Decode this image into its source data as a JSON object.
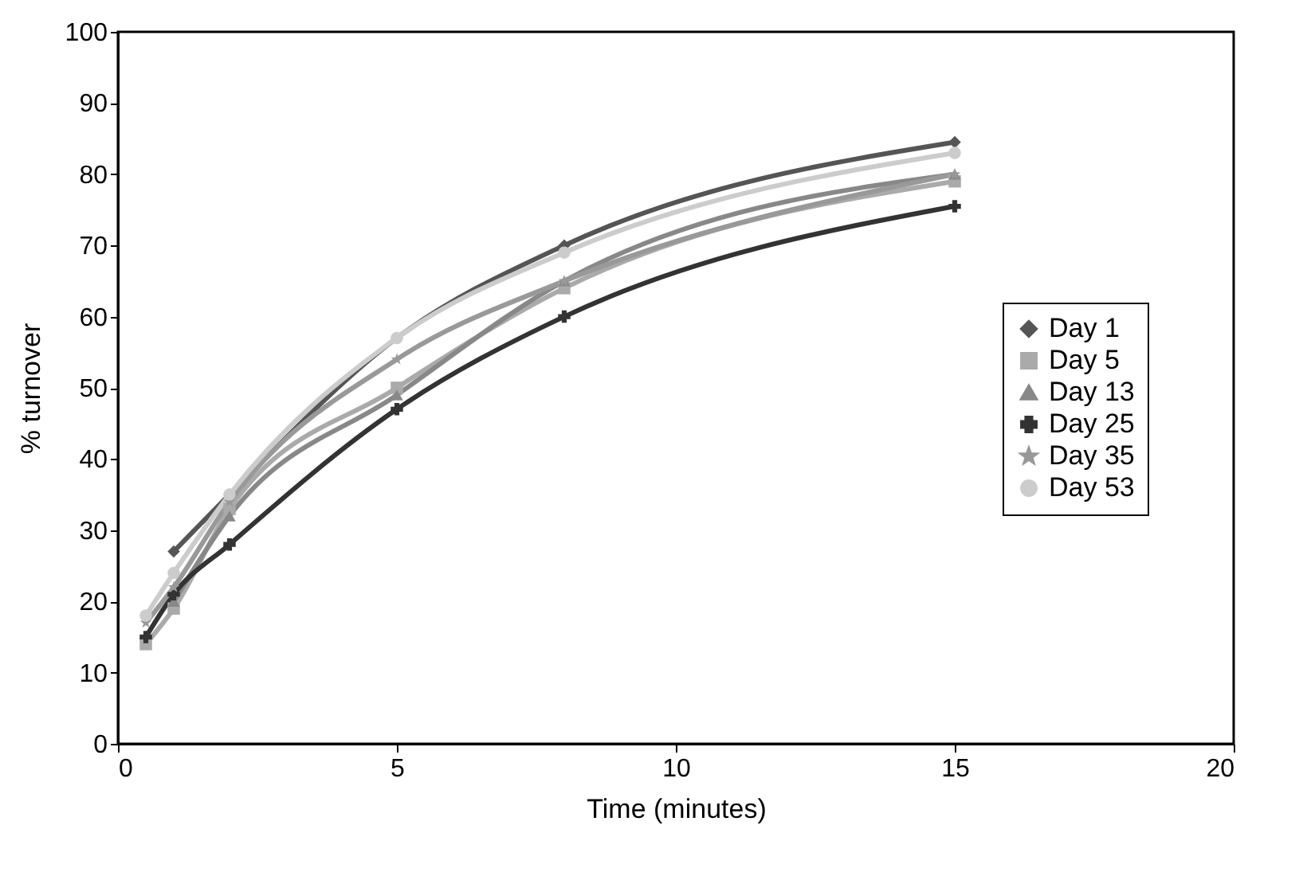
{
  "chart_data": {
    "type": "line",
    "xlabel": "Time (minutes)",
    "ylabel": "% turnover",
    "x": [
      0.5,
      1,
      2,
      5,
      8,
      15
    ],
    "series": [
      {
        "name": "Day 1",
        "color": "#555555",
        "marker": "diamond",
        "values": [
          null,
          27,
          35,
          57,
          70,
          84.5
        ]
      },
      {
        "name": "Day 5",
        "color": "#aaaaaa",
        "marker": "square",
        "values": [
          14,
          19,
          33,
          50,
          64,
          79
        ]
      },
      {
        "name": "Day 13",
        "color": "#888888",
        "marker": "triangle",
        "values": [
          null,
          20,
          32,
          49,
          65,
          80
        ]
      },
      {
        "name": "Day 25",
        "color": "#333333",
        "marker": "cross",
        "values": [
          15,
          21,
          28,
          47,
          60,
          75.5
        ]
      },
      {
        "name": "Day 35",
        "color": "#999999",
        "marker": "star",
        "values": [
          17,
          22,
          34,
          54,
          65,
          80
        ]
      },
      {
        "name": "Day 53",
        "color": "#cccccc",
        "marker": "circle",
        "values": [
          18,
          24,
          35,
          57,
          69,
          83
        ]
      }
    ],
    "xlim": [
      0,
      20
    ],
    "xticks": [
      0,
      5,
      10,
      15,
      20
    ],
    "ylim": [
      0,
      100
    ],
    "yticks": [
      0,
      10,
      20,
      30,
      40,
      50,
      60,
      70,
      80,
      90,
      100
    ],
    "grid": false,
    "legend": "right",
    "line_style": "solid"
  }
}
